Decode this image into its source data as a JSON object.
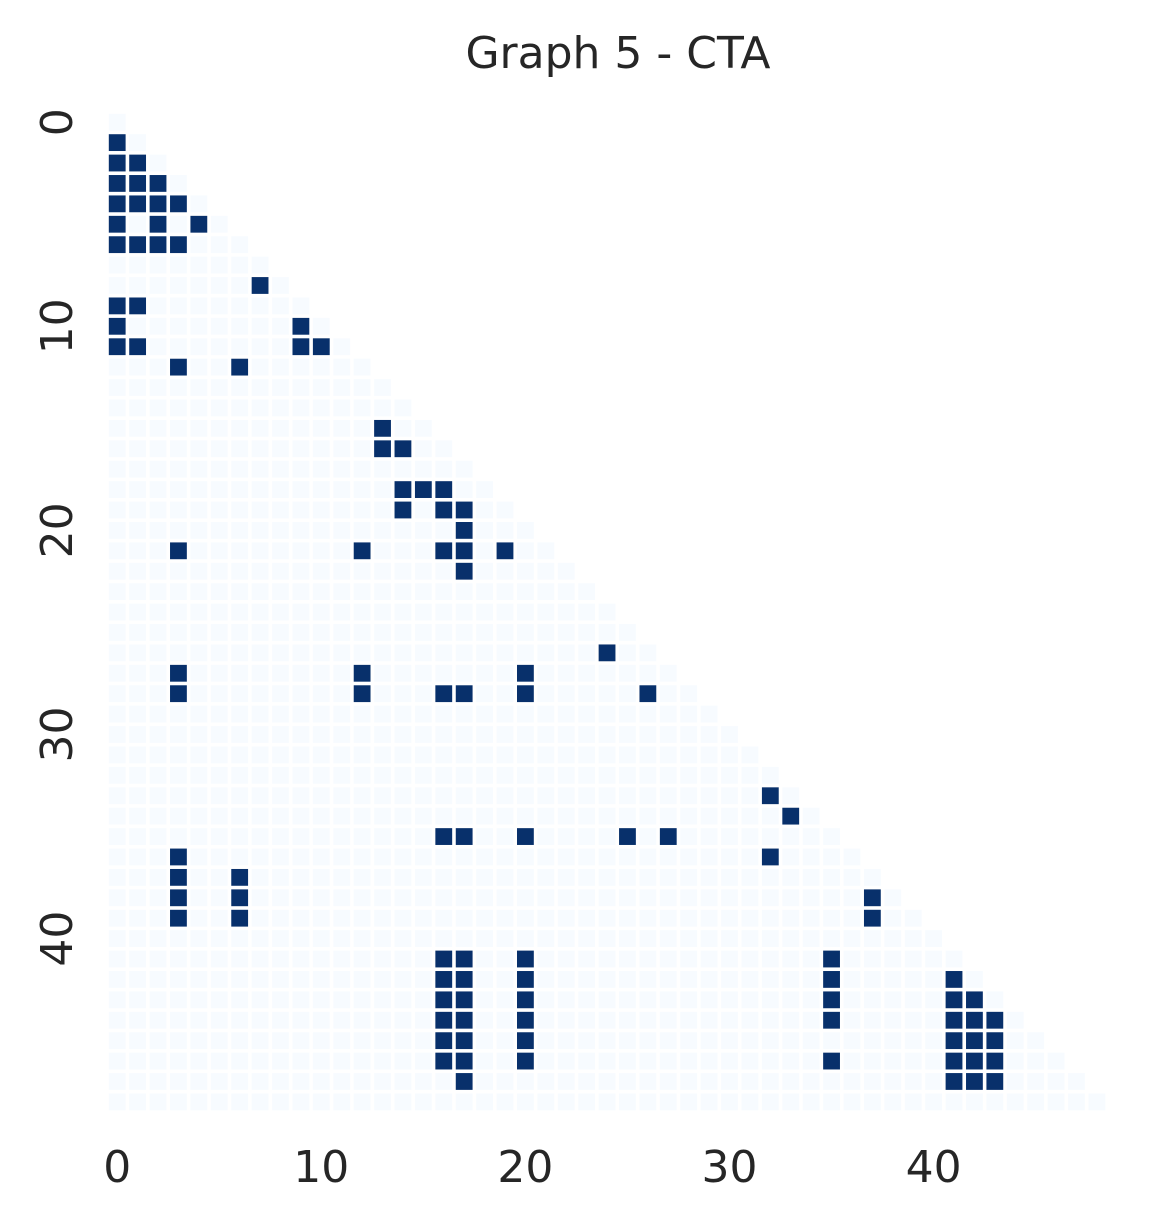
{
  "chart_data": {
    "type": "heatmap",
    "title": "Graph 5 - CTA",
    "xlabel": "",
    "ylabel": "",
    "size": 49,
    "mask": "upper-triangle",
    "xlim": [
      0,
      49
    ],
    "ylim": [
      0,
      49
    ],
    "x_ticks": [
      0,
      10,
      20,
      30,
      40
    ],
    "y_ticks": [
      0,
      10,
      20,
      30,
      40
    ],
    "grid": false,
    "colors": {
      "one": "#08306b",
      "zero": "#f7fbff",
      "background": "#ffffff",
      "text": "#262626"
    },
    "cells": [
      [
        1,
        0
      ],
      [
        2,
        0
      ],
      [
        2,
        1
      ],
      [
        3,
        0
      ],
      [
        3,
        1
      ],
      [
        3,
        2
      ],
      [
        4,
        0
      ],
      [
        4,
        1
      ],
      [
        4,
        2
      ],
      [
        4,
        3
      ],
      [
        5,
        0
      ],
      [
        5,
        2
      ],
      [
        5,
        4
      ],
      [
        6,
        0
      ],
      [
        6,
        1
      ],
      [
        6,
        2
      ],
      [
        6,
        3
      ],
      [
        8,
        7
      ],
      [
        9,
        0
      ],
      [
        9,
        1
      ],
      [
        10,
        0
      ],
      [
        10,
        9
      ],
      [
        11,
        0
      ],
      [
        11,
        1
      ],
      [
        11,
        9
      ],
      [
        11,
        10
      ],
      [
        12,
        3
      ],
      [
        12,
        6
      ],
      [
        15,
        13
      ],
      [
        16,
        13
      ],
      [
        16,
        14
      ],
      [
        18,
        14
      ],
      [
        18,
        15
      ],
      [
        18,
        16
      ],
      [
        19,
        14
      ],
      [
        19,
        16
      ],
      [
        19,
        17
      ],
      [
        20,
        17
      ],
      [
        21,
        3
      ],
      [
        21,
        12
      ],
      [
        21,
        16
      ],
      [
        21,
        17
      ],
      [
        21,
        19
      ],
      [
        22,
        17
      ],
      [
        26,
        24
      ],
      [
        27,
        3
      ],
      [
        27,
        12
      ],
      [
        27,
        20
      ],
      [
        28,
        3
      ],
      [
        28,
        12
      ],
      [
        28,
        16
      ],
      [
        28,
        17
      ],
      [
        28,
        20
      ],
      [
        28,
        26
      ],
      [
        33,
        32
      ],
      [
        34,
        33
      ],
      [
        35,
        16
      ],
      [
        35,
        17
      ],
      [
        35,
        20
      ],
      [
        35,
        25
      ],
      [
        35,
        27
      ],
      [
        36,
        3
      ],
      [
        36,
        32
      ],
      [
        37,
        3
      ],
      [
        37,
        6
      ],
      [
        38,
        3
      ],
      [
        38,
        6
      ],
      [
        38,
        37
      ],
      [
        39,
        3
      ],
      [
        39,
        6
      ],
      [
        39,
        37
      ],
      [
        41,
        16
      ],
      [
        41,
        17
      ],
      [
        41,
        20
      ],
      [
        41,
        35
      ],
      [
        42,
        16
      ],
      [
        42,
        17
      ],
      [
        42,
        20
      ],
      [
        42,
        35
      ],
      [
        42,
        41
      ],
      [
        43,
        16
      ],
      [
        43,
        17
      ],
      [
        43,
        20
      ],
      [
        43,
        35
      ],
      [
        43,
        41
      ],
      [
        43,
        42
      ],
      [
        44,
        16
      ],
      [
        44,
        17
      ],
      [
        44,
        20
      ],
      [
        44,
        35
      ],
      [
        44,
        41
      ],
      [
        44,
        42
      ],
      [
        44,
        43
      ],
      [
        45,
        16
      ],
      [
        45,
        17
      ],
      [
        45,
        20
      ],
      [
        45,
        41
      ],
      [
        45,
        42
      ],
      [
        45,
        43
      ],
      [
        46,
        16
      ],
      [
        46,
        17
      ],
      [
        46,
        20
      ],
      [
        46,
        35
      ],
      [
        46,
        41
      ],
      [
        46,
        42
      ],
      [
        46,
        43
      ],
      [
        47,
        17
      ],
      [
        47,
        41
      ],
      [
        47,
        42
      ],
      [
        47,
        43
      ]
    ]
  }
}
